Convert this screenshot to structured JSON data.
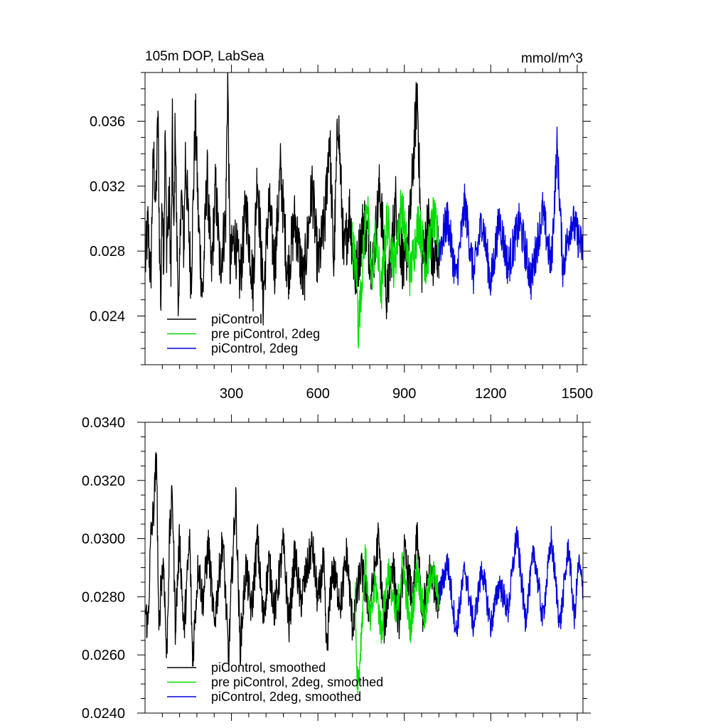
{
  "chart_data": [
    {
      "type": "line",
      "title_left": "105m DOP, LabSea",
      "title_right": "mmol/m^3",
      "xlabel": "",
      "ylabel": "",
      "xlim": [
        0,
        1520
      ],
      "ylim": [
        0.021,
        0.039
      ],
      "x_ticks": [
        300,
        600,
        900,
        1200,
        1500
      ],
      "y_ticks": [
        0.024,
        0.028,
        0.032,
        0.036
      ],
      "y_tick_labels": [
        "0.024",
        "0.028",
        "0.032",
        "0.036"
      ],
      "grid": false,
      "legend_position": "bottom-left",
      "series": [
        {
          "name": "piControl",
          "color": "#000000",
          "x_range": [
            1,
            1020
          ],
          "knots": [
            [
              1,
              0.0272
            ],
            [
              10,
              0.0295
            ],
            [
              20,
              0.0262
            ],
            [
              25,
              0.0312
            ],
            [
              30,
              0.034
            ],
            [
              37,
              0.0305
            ],
            [
              45,
              0.0365
            ],
            [
              50,
              0.0288
            ],
            [
              55,
              0.0248
            ],
            [
              60,
              0.0322
            ],
            [
              65,
              0.0275
            ],
            [
              70,
              0.0355
            ],
            [
              75,
              0.0285
            ],
            [
              85,
              0.031
            ],
            [
              90,
              0.0262
            ],
            [
              95,
              0.0355
            ],
            [
              100,
              0.0282
            ],
            [
              105,
              0.0365
            ],
            [
              110,
              0.029
            ],
            [
              118,
              0.024
            ],
            [
              125,
              0.032
            ],
            [
              135,
              0.028
            ],
            [
              140,
              0.034
            ],
            [
              150,
              0.03
            ],
            [
              160,
              0.0262
            ],
            [
              175,
              0.0365
            ],
            [
              185,
              0.03
            ],
            [
              200,
              0.025
            ],
            [
              215,
              0.033
            ],
            [
              230,
              0.0265
            ],
            [
              245,
              0.032
            ],
            [
              260,
              0.027
            ],
            [
              280,
              0.03
            ],
            [
              287,
              0.039
            ],
            [
              295,
              0.027
            ],
            [
              310,
              0.029
            ],
            [
              330,
              0.0262
            ],
            [
              350,
              0.0308
            ],
            [
              375,
              0.026
            ],
            [
              390,
              0.033
            ],
            [
              410,
              0.025
            ],
            [
              430,
              0.031
            ],
            [
              450,
              0.027
            ],
            [
              470,
              0.033
            ],
            [
              495,
              0.0265
            ],
            [
              520,
              0.03
            ],
            [
              550,
              0.026
            ],
            [
              580,
              0.032
            ],
            [
              600,
              0.027
            ],
            [
              625,
              0.03
            ],
            [
              640,
              0.0355
            ],
            [
              655,
              0.027
            ],
            [
              670,
              0.0366
            ],
            [
              690,
              0.0275
            ],
            [
              710,
              0.0305
            ],
            [
              730,
              0.0262
            ],
            [
              760,
              0.03
            ],
            [
              790,
              0.027
            ],
            [
              815,
              0.032
            ],
            [
              840,
              0.025
            ],
            [
              870,
              0.031
            ],
            [
              900,
              0.0265
            ],
            [
              920,
              0.03
            ],
            [
              945,
              0.038
            ],
            [
              960,
              0.027
            ],
            [
              985,
              0.03
            ],
            [
              1000,
              0.027
            ],
            [
              1020,
              0.0282
            ]
          ],
          "amplitude": 0.0019
        },
        {
          "name": "pre piControl, 2deg",
          "color": "#00dd00",
          "x_range": [
            720,
            1020
          ],
          "knots": [
            [
              720,
              0.0285
            ],
            [
              735,
              0.0265
            ],
            [
              740,
              0.0232
            ],
            [
              755,
              0.027
            ],
            [
              770,
              0.0315
            ],
            [
              785,
              0.026
            ],
            [
              800,
              0.029
            ],
            [
              820,
              0.0255
            ],
            [
              840,
              0.03
            ],
            [
              865,
              0.027
            ],
            [
              890,
              0.031
            ],
            [
              920,
              0.0265
            ],
            [
              950,
              0.03
            ],
            [
              975,
              0.027
            ],
            [
              1000,
              0.03
            ],
            [
              1020,
              0.0285
            ]
          ],
          "amplitude": 0.0015
        },
        {
          "name": "piControl, 2deg",
          "color": "#0000e0",
          "x_range": [
            1020,
            1520
          ],
          "knots": [
            [
              1020,
              0.028
            ],
            [
              1050,
              0.03
            ],
            [
              1080,
              0.0262
            ],
            [
              1110,
              0.031
            ],
            [
              1140,
              0.0265
            ],
            [
              1170,
              0.03
            ],
            [
              1200,
              0.026
            ],
            [
              1230,
              0.03
            ],
            [
              1260,
              0.027
            ],
            [
              1300,
              0.0298
            ],
            [
              1340,
              0.0262
            ],
            [
              1380,
              0.0305
            ],
            [
              1410,
              0.027
            ],
            [
              1430,
              0.0345
            ],
            [
              1450,
              0.027
            ],
            [
              1480,
              0.03
            ],
            [
              1520,
              0.028
            ]
          ],
          "amplitude": 0.0013
        }
      ]
    },
    {
      "type": "line",
      "xlabel": "",
      "ylabel": "",
      "xlim": [
        0,
        1520
      ],
      "ylim": [
        0.024,
        0.034
      ],
      "x_ticks": [
        300,
        600,
        900,
        1200,
        1500
      ],
      "y_ticks": [
        0.024,
        0.026,
        0.028,
        0.03,
        0.032,
        0.034
      ],
      "y_tick_labels": [
        "0.0240",
        "0.0260",
        "0.0280",
        "0.0300",
        "0.0320",
        "0.0340"
      ],
      "grid": false,
      "legend_position": "bottom-left",
      "series": [
        {
          "name": "piControl, smoothed",
          "color": "#000000",
          "x_range": [
            1,
            1020
          ],
          "knots": [
            [
              1,
              0.0275
            ],
            [
              10,
              0.027
            ],
            [
              20,
              0.03
            ],
            [
              30,
              0.031
            ],
            [
              40,
              0.0329
            ],
            [
              48,
              0.0265
            ],
            [
              55,
              0.0285
            ],
            [
              65,
              0.0292
            ],
            [
              75,
              0.0258
            ],
            [
              85,
              0.03
            ],
            [
              95,
              0.0316
            ],
            [
              105,
              0.027
            ],
            [
              120,
              0.03
            ],
            [
              135,
              0.0268
            ],
            [
              155,
              0.03
            ],
            [
              165,
              0.0258
            ],
            [
              185,
              0.0292
            ],
            [
              200,
              0.0278
            ],
            [
              220,
              0.0298
            ],
            [
              240,
              0.027
            ],
            [
              270,
              0.03
            ],
            [
              290,
              0.0258
            ],
            [
              300,
              0.0285
            ],
            [
              315,
              0.0314
            ],
            [
              330,
              0.0262
            ],
            [
              350,
              0.029
            ],
            [
              370,
              0.0275
            ],
            [
              390,
              0.03
            ],
            [
              410,
              0.0272
            ],
            [
              430,
              0.0292
            ],
            [
              450,
              0.0275
            ],
            [
              480,
              0.0298
            ],
            [
              500,
              0.027
            ],
            [
              520,
              0.0295
            ],
            [
              540,
              0.0278
            ],
            [
              580,
              0.0298
            ],
            [
              600,
              0.0278
            ],
            [
              620,
              0.0292
            ],
            [
              630,
              0.0261
            ],
            [
              650,
              0.029
            ],
            [
              680,
              0.0278
            ],
            [
              700,
              0.0295
            ],
            [
              720,
              0.027
            ],
            [
              750,
              0.029
            ],
            [
              780,
              0.0275
            ],
            [
              810,
              0.03
            ],
            [
              830,
              0.027
            ],
            [
              860,
              0.0292
            ],
            [
              880,
              0.027
            ],
            [
              900,
              0.0295
            ],
            [
              930,
              0.0278
            ],
            [
              945,
              0.0303
            ],
            [
              960,
              0.0272
            ],
            [
              990,
              0.029
            ],
            [
              1020,
              0.0278
            ]
          ],
          "amplitude": 0.0007
        },
        {
          "name": "pre piControl, 2deg, smoothed",
          "color": "#00dd00",
          "x_range": [
            730,
            1020
          ],
          "knots": [
            [
              730,
              0.028
            ],
            [
              735,
              0.0254
            ],
            [
              742,
              0.0252
            ],
            [
              752,
              0.027
            ],
            [
              765,
              0.0294
            ],
            [
              780,
              0.027
            ],
            [
              800,
              0.0285
            ],
            [
              820,
              0.0268
            ],
            [
              845,
              0.029
            ],
            [
              870,
              0.0272
            ],
            [
              895,
              0.0292
            ],
            [
              920,
              0.0268
            ],
            [
              945,
              0.029
            ],
            [
              970,
              0.0272
            ],
            [
              995,
              0.029
            ],
            [
              1020,
              0.028
            ]
          ],
          "amplitude": 0.0006
        },
        {
          "name": "piControl, 2deg, smoothed",
          "color": "#0000e0",
          "x_range": [
            1020,
            1520
          ],
          "knots": [
            [
              1020,
              0.028
            ],
            [
              1050,
              0.0292
            ],
            [
              1080,
              0.0268
            ],
            [
              1110,
              0.029
            ],
            [
              1140,
              0.027
            ],
            [
              1170,
              0.029
            ],
            [
              1200,
              0.027
            ],
            [
              1230,
              0.0285
            ],
            [
              1260,
              0.0275
            ],
            [
              1290,
              0.0302
            ],
            [
              1320,
              0.0272
            ],
            [
              1350,
              0.0296
            ],
            [
              1380,
              0.0272
            ],
            [
              1410,
              0.03
            ],
            [
              1440,
              0.027
            ],
            [
              1470,
              0.0298
            ],
            [
              1490,
              0.0272
            ],
            [
              1505,
              0.0292
            ],
            [
              1520,
              0.0282
            ]
          ],
          "amplitude": 0.0005
        }
      ]
    }
  ]
}
